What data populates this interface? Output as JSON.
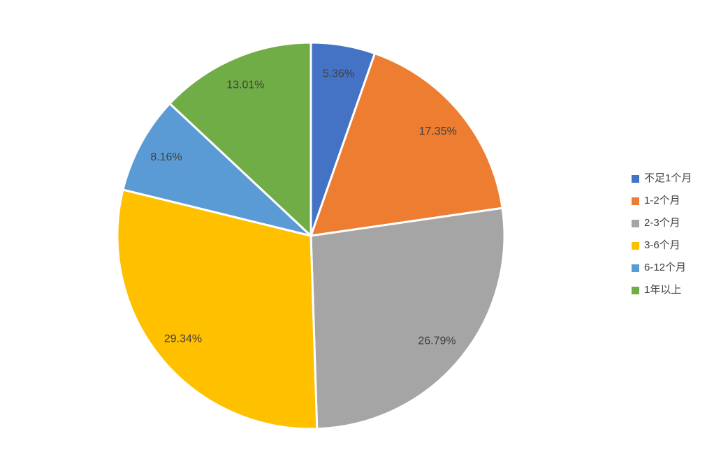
{
  "chart_data": {
    "type": "pie",
    "title": "",
    "legend_position": "right",
    "start_angle_deg": 0,
    "direction": "clockwise",
    "background_color": "#FFFFFF",
    "label_color": "#404040",
    "slice_border_color": "#FFFFFF",
    "slices": [
      {
        "label": "不足1个月",
        "value": 5.36,
        "display": "5.36%",
        "color": "#4472C4"
      },
      {
        "label": "1-2个月",
        "value": 17.35,
        "display": "17.35%",
        "color": "#ED7D31"
      },
      {
        "label": "2-3个月",
        "value": 26.79,
        "display": "26.79%",
        "color": "#A5A5A5"
      },
      {
        "label": "3-6个月",
        "value": 29.34,
        "display": "29.34%",
        "color": "#FFC000"
      },
      {
        "label": "6-12个月",
        "value": 8.16,
        "display": "8.16%",
        "color": "#5B9BD5"
      },
      {
        "label": "1年以上",
        "value": 13.01,
        "display": "13.01%",
        "color": "#70AD47"
      }
    ]
  }
}
